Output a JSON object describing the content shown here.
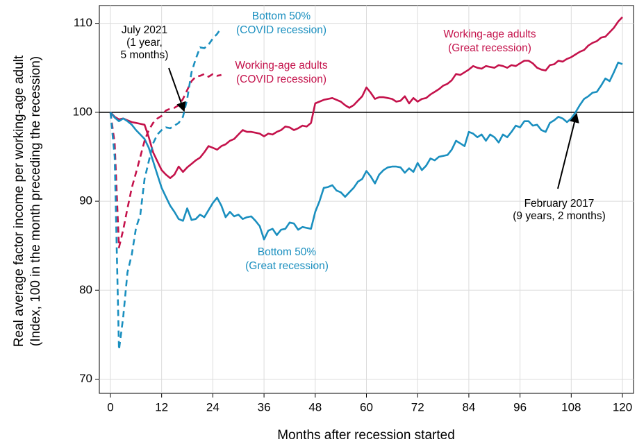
{
  "chart_data": {
    "type": "line",
    "xlabel": "Months after recession started",
    "ylabel": [
      "Real average factor income per working-age adult",
      "(Index, 100 in the month preceding the recession)"
    ],
    "xlim": [
      -2.6,
      122.6
    ],
    "ylim": [
      68.4,
      112.0
    ],
    "xticks": [
      0,
      12,
      24,
      36,
      48,
      60,
      72,
      84,
      96,
      108,
      120
    ],
    "yticks": [
      70,
      80,
      90,
      100,
      110
    ],
    "grid": true,
    "hline": 100,
    "x": [
      0,
      1,
      2,
      3,
      4,
      5,
      6,
      7,
      8,
      9,
      10,
      11,
      12,
      13,
      14,
      15,
      16,
      17,
      18,
      19,
      20,
      21,
      22,
      23,
      24,
      25,
      26,
      27,
      28,
      29,
      30,
      31,
      32,
      33,
      34,
      35,
      36,
      37,
      38,
      39,
      40,
      41,
      42,
      43,
      44,
      45,
      46,
      47,
      48,
      49,
      50,
      51,
      52,
      53,
      54,
      55,
      56,
      57,
      58,
      59,
      60,
      61,
      62,
      63,
      64,
      65,
      66,
      67,
      68,
      69,
      70,
      71,
      72,
      73,
      74,
      75,
      76,
      77,
      78,
      79,
      80,
      81,
      82,
      83,
      84,
      85,
      86,
      87,
      88,
      89,
      90,
      91,
      92,
      93,
      94,
      95,
      96,
      97,
      98,
      99,
      100,
      101,
      102,
      103,
      104,
      105,
      106,
      107,
      108,
      109,
      110,
      111,
      112,
      113,
      114,
      115,
      116,
      117,
      118,
      119,
      120
    ],
    "series": [
      {
        "label_lines": [
          "Working-age adults",
          "(Great recession)"
        ],
        "color": "#c4124b",
        "dash": false,
        "values": [
          100,
          99.5,
          99.2,
          99.3,
          99.1,
          98.9,
          98.8,
          98.7,
          98.6,
          97.2,
          95.5,
          94.5,
          93.5,
          93,
          92.6,
          93,
          93.9,
          93.3,
          93.8,
          94.2,
          94.6,
          94.9,
          95.5,
          96.2,
          96,
          95.8,
          96.2,
          96.4,
          96.8,
          97,
          97.5,
          98,
          97.8,
          97.8,
          97.7,
          97.6,
          97.3,
          97.6,
          97.5,
          97.8,
          98,
          98.4,
          98.3,
          98,
          98.2,
          98.5,
          98.4,
          98.8,
          101,
          101.2,
          101.4,
          101.5,
          101.6,
          101.4,
          101.2,
          100.8,
          100.5,
          100.8,
          101.3,
          101.8,
          102.8,
          102.2,
          101.5,
          101.7,
          101.7,
          101.6,
          101.5,
          101.2,
          101.3,
          101.8,
          101,
          101.6,
          101.2,
          101.5,
          101.6,
          102,
          102.3,
          102.6,
          103,
          103.2,
          103.6,
          104.3,
          104.2,
          104.5,
          104.8,
          105.2,
          105,
          104.9,
          105.2,
          105.1,
          105,
          105.3,
          105.2,
          105,
          105.3,
          105.2,
          105.5,
          105.8,
          105.8,
          105.5,
          105,
          104.8,
          104.7,
          105.3,
          105.4,
          105.8,
          105.7,
          106,
          106.2,
          106.5,
          106.8,
          107,
          107.5,
          107.8,
          108,
          108.4,
          108.5,
          109,
          109.5,
          110.2,
          110.7
        ]
      },
      {
        "label_lines": [
          "Bottom 50%",
          "(Great recession)"
        ],
        "color": "#1a8fbf",
        "dash": false,
        "values": [
          100,
          99.4,
          99,
          99.3,
          99,
          98.6,
          98,
          97.5,
          97,
          96,
          94.5,
          93,
          91.5,
          90.5,
          89.5,
          88.8,
          88,
          87.8,
          89.2,
          87.9,
          88,
          88.5,
          88.2,
          89,
          89.8,
          90.4,
          89.5,
          88.2,
          88.8,
          88.3,
          88.5,
          88,
          88.2,
          88.3,
          87.8,
          87.2,
          85.7,
          86.7,
          86.9,
          86.2,
          86.8,
          86.9,
          87.6,
          87.5,
          86.8,
          87.1,
          87,
          86.9,
          88.8,
          90,
          91.5,
          91.6,
          91.8,
          91.2,
          91,
          90.5,
          91,
          91.5,
          92.2,
          92.5,
          93.4,
          92.8,
          92,
          93,
          93.5,
          93.8,
          93.9,
          93.9,
          93.8,
          93.2,
          93.7,
          93.3,
          94.3,
          93.5,
          94,
          94.8,
          94.6,
          95,
          95.1,
          95.2,
          95.8,
          96.8,
          96.5,
          96.2,
          97.8,
          97.6,
          97.2,
          97.5,
          96.8,
          97.5,
          97.2,
          96.6,
          97.5,
          97.2,
          97.8,
          98.5,
          98.3,
          99,
          99,
          98.5,
          98.6,
          98,
          97.8,
          98.8,
          99.1,
          99.5,
          99.3,
          98.9,
          99.3,
          100,
          100.8,
          101.5,
          101.8,
          102.2,
          102.3,
          103,
          103.8,
          103.5,
          104.5,
          105.6,
          105.4
        ]
      },
      {
        "label_lines": [
          "Working-age adults",
          "(COVID recession)"
        ],
        "color": "#c4124b",
        "dash": true,
        "values": [
          100,
          96.5,
          84.8,
          86.8,
          89.2,
          91.5,
          93.2,
          95,
          96.8,
          98,
          98.8,
          99.3,
          99.6,
          100.2,
          100.4,
          100.5,
          100.8,
          101.5,
          102.5,
          103.5,
          104,
          104.1,
          104.3,
          104,
          104.3,
          104.1,
          104.2,
          null,
          null,
          null,
          null,
          null,
          null,
          null,
          null,
          null,
          null,
          null,
          null,
          null,
          null,
          null,
          null,
          null,
          null,
          null,
          null,
          null,
          null,
          null,
          null,
          null,
          null,
          null,
          null,
          null,
          null,
          null,
          null,
          null,
          null,
          null,
          null,
          null,
          null,
          null,
          null,
          null,
          null,
          null,
          null,
          null,
          null,
          null,
          null,
          null,
          null,
          null,
          null,
          null,
          null,
          null,
          null,
          null,
          null,
          null,
          null,
          null,
          null,
          null,
          null,
          null,
          null,
          null,
          null,
          null,
          null,
          null,
          null,
          null,
          null,
          null,
          null,
          null,
          null,
          null,
          null,
          null,
          null,
          null,
          null,
          null,
          null,
          null,
          null,
          null,
          null,
          null,
          null,
          null,
          null
        ]
      },
      {
        "label_lines": [
          "Bottom 50%",
          "(COVID recession)"
        ],
        "color": "#1a8fbf",
        "dash": true,
        "values": [
          100,
          95,
          73.3,
          77,
          82,
          84,
          87,
          88.5,
          92.5,
          94.5,
          96.5,
          97.5,
          98,
          98.3,
          98.2,
          98.5,
          98.8,
          99.5,
          101.5,
          104.5,
          106,
          107.3,
          107.2,
          107.6,
          108.3,
          108.8,
          109.5,
          null,
          null,
          null,
          null,
          null,
          null,
          null,
          null,
          null,
          null,
          null,
          null,
          null,
          null,
          null,
          null,
          null,
          null,
          null,
          null,
          null,
          null,
          null,
          null,
          null,
          null,
          null,
          null,
          null,
          null,
          null,
          null,
          null,
          null,
          null,
          null,
          null,
          null,
          null,
          null,
          null,
          null,
          null,
          null,
          null,
          null,
          null,
          null,
          null,
          null,
          null,
          null,
          null,
          null,
          null,
          null,
          null,
          null,
          null,
          null,
          null,
          null,
          null,
          null,
          null,
          null,
          null,
          null,
          null,
          null,
          null,
          null,
          null,
          null,
          null,
          null,
          null,
          null,
          null,
          null,
          null,
          null,
          null,
          null,
          null,
          null,
          null,
          null,
          null,
          null,
          null,
          null,
          null,
          null
        ]
      }
    ],
    "annotations": [
      {
        "lines": [
          "July 2021",
          "(1 year,",
          "5 months)"
        ]
      },
      {
        "lines": [
          "February 2017",
          "(9 years, 2 months)"
        ]
      }
    ]
  }
}
